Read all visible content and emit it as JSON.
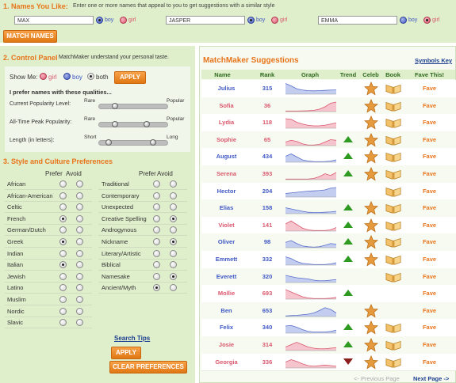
{
  "names_section": {
    "title": "1. Names You Like:",
    "instructions": "Enter one or more names that appeal to you to get suggestions with a similar style",
    "inputs": [
      {
        "value": "MAX",
        "gender": "boy"
      },
      {
        "value": "JASPER",
        "gender": "boy"
      },
      {
        "value": "EMMA",
        "gender": "girl"
      }
    ],
    "boy_label": "boy",
    "girl_label": "girl",
    "match_button": "MATCH NAMES"
  },
  "control_panel": {
    "title": "2. Control Panel",
    "subtitle": "MatchMaker understand your personal taste.",
    "show_me_label": "Show Me:",
    "options": [
      "girl",
      "boy",
      "both"
    ],
    "selected": "both",
    "apply_label": "APPLY",
    "qualities_title": "I prefer names with these qualities...",
    "sliders": [
      {
        "label": "Current Popularity Level:",
        "left": "Rare",
        "right": "Popular",
        "knobs": [
          0.2
        ]
      },
      {
        "label": "All-Time Peak Popularity:",
        "left": "Rare",
        "right": "Popular",
        "knobs": [
          0.2,
          0.7
        ]
      },
      {
        "label": "Length (in letters):",
        "left": "Short",
        "right": "Long",
        "knobs": [
          0.1,
          0.8
        ]
      }
    ]
  },
  "style_section": {
    "title": "3. Style and Culture Preferences",
    "prefer_label": "Prefer",
    "avoid_label": "Avoid",
    "left_styles": [
      {
        "name": "African",
        "pref": ""
      },
      {
        "name": "African-American",
        "pref": ""
      },
      {
        "name": "Celtic",
        "pref": ""
      },
      {
        "name": "French",
        "pref": "prefer"
      },
      {
        "name": "German/Dutch",
        "pref": ""
      },
      {
        "name": "Greek",
        "pref": "prefer"
      },
      {
        "name": "Indian",
        "pref": ""
      },
      {
        "name": "Italian",
        "pref": "prefer"
      },
      {
        "name": "Jewish",
        "pref": ""
      },
      {
        "name": "Latino",
        "pref": ""
      },
      {
        "name": "Muslim",
        "pref": ""
      },
      {
        "name": "Nordic",
        "pref": ""
      },
      {
        "name": "Slavic",
        "pref": ""
      }
    ],
    "right_styles": [
      {
        "name": "Traditional",
        "pref": ""
      },
      {
        "name": "Contemporary",
        "pref": ""
      },
      {
        "name": "Unexpected",
        "pref": ""
      },
      {
        "name": "Creative Spelling",
        "pref": "avoid"
      },
      {
        "name": "Androgynous",
        "pref": ""
      },
      {
        "name": "Nickname",
        "pref": "avoid"
      },
      {
        "name": "Literary/Artistic",
        "pref": ""
      },
      {
        "name": "Biblical",
        "pref": ""
      },
      {
        "name": "Namesake",
        "pref": "avoid"
      },
      {
        "name": "Ancient/Myth",
        "pref": "prefer"
      }
    ],
    "search_tips": "Search Tips",
    "apply_label": "APPLY",
    "clear_label": "CLEAR PREFERENCES"
  },
  "suggestions": {
    "title": "MatchMaker Suggestions",
    "symbols_key": "Symbols Key",
    "columns": [
      "Name",
      "Rank",
      "Graph",
      "Trend",
      "Celeb",
      "Book",
      "Fave This!"
    ],
    "rows": [
      {
        "name": "Julius",
        "gender": "boy",
        "rank": "315",
        "trend": "",
        "celeb": true,
        "book": true,
        "fave": "Fave",
        "spark": [
          0.9,
          0.7,
          0.45,
          0.35,
          0.3,
          0.28,
          0.3,
          0.32,
          0.35,
          0.36
        ]
      },
      {
        "name": "Sofia",
        "gender": "girl",
        "rank": "36",
        "trend": "",
        "celeb": true,
        "book": true,
        "fave": "Fave",
        "spark": [
          0.05,
          0.05,
          0.05,
          0.06,
          0.07,
          0.1,
          0.2,
          0.4,
          0.7,
          0.8
        ]
      },
      {
        "name": "Lydia",
        "gender": "girl",
        "rank": "118",
        "trend": "",
        "celeb": true,
        "book": true,
        "fave": "Fave",
        "spark": [
          0.8,
          0.75,
          0.5,
          0.35,
          0.25,
          0.2,
          0.2,
          0.25,
          0.35,
          0.45
        ]
      },
      {
        "name": "Sophie",
        "gender": "girl",
        "rank": "65",
        "trend": "up",
        "celeb": true,
        "book": true,
        "fave": "Fave",
        "spark": [
          0.3,
          0.45,
          0.35,
          0.15,
          0.05,
          0.05,
          0.1,
          0.3,
          0.5,
          0.45
        ]
      },
      {
        "name": "August",
        "gender": "boy",
        "rank": "434",
        "trend": "up",
        "celeb": true,
        "book": true,
        "fave": "Fave",
        "spark": [
          0.5,
          0.7,
          0.45,
          0.2,
          0.1,
          0.06,
          0.05,
          0.06,
          0.1,
          0.2
        ]
      },
      {
        "name": "Serena",
        "gender": "girl",
        "rank": "393",
        "trend": "up",
        "celeb": true,
        "book": true,
        "fave": "Fave",
        "spark": [
          0.05,
          0.05,
          0.05,
          0.05,
          0.05,
          0.1,
          0.25,
          0.5,
          0.35,
          0.6
        ]
      },
      {
        "name": "Hector",
        "gender": "boy",
        "rank": "204",
        "trend": "",
        "celeb": false,
        "book": true,
        "fave": "Fave",
        "spark": [
          0.3,
          0.35,
          0.4,
          0.45,
          0.5,
          0.52,
          0.55,
          0.6,
          0.75,
          0.8
        ]
      },
      {
        "name": "Elias",
        "gender": "boy",
        "rank": "158",
        "trend": "up",
        "celeb": true,
        "book": true,
        "fave": "Fave",
        "spark": [
          0.5,
          0.4,
          0.3,
          0.2,
          0.12,
          0.1,
          0.1,
          0.12,
          0.15,
          0.2
        ]
      },
      {
        "name": "Violet",
        "gender": "girl",
        "rank": "141",
        "trend": "up",
        "celeb": true,
        "book": true,
        "fave": "Fave",
        "spark": [
          0.6,
          0.85,
          0.55,
          0.25,
          0.1,
          0.05,
          0.05,
          0.05,
          0.1,
          0.3
        ]
      },
      {
        "name": "Oliver",
        "gender": "boy",
        "rank": "98",
        "trend": "up",
        "celeb": true,
        "book": true,
        "fave": "Fave",
        "spark": [
          0.45,
          0.6,
          0.35,
          0.15,
          0.08,
          0.05,
          0.08,
          0.2,
          0.35,
          0.3
        ]
      },
      {
        "name": "Emmett",
        "gender": "boy",
        "rank": "332",
        "trend": "up",
        "celeb": true,
        "book": true,
        "fave": "Fave",
        "spark": [
          0.7,
          0.55,
          0.3,
          0.15,
          0.1,
          0.05,
          0.05,
          0.05,
          0.1,
          0.2
        ]
      },
      {
        "name": "Everett",
        "gender": "boy",
        "rank": "320",
        "trend": "",
        "celeb": false,
        "book": true,
        "fave": "Fave",
        "spark": [
          0.6,
          0.5,
          0.4,
          0.35,
          0.3,
          0.2,
          0.15,
          0.15,
          0.2,
          0.25
        ]
      },
      {
        "name": "Mollie",
        "gender": "girl",
        "rank": "693",
        "trend": "up",
        "celeb": false,
        "book": false,
        "fave": "Fave",
        "spark": [
          0.8,
          0.6,
          0.4,
          0.2,
          0.1,
          0.05,
          0.05,
          0.05,
          0.08,
          0.15
        ]
      },
      {
        "name": "Ben",
        "gender": "boy",
        "rank": "653",
        "trend": "",
        "celeb": true,
        "book": false,
        "fave": "Fave",
        "spark": [
          0.05,
          0.08,
          0.1,
          0.15,
          0.2,
          0.3,
          0.5,
          0.75,
          0.6,
          0.3
        ]
      },
      {
        "name": "Felix",
        "gender": "boy",
        "rank": "340",
        "trend": "up",
        "celeb": true,
        "book": true,
        "fave": "Fave",
        "spark": [
          0.6,
          0.65,
          0.5,
          0.3,
          0.15,
          0.1,
          0.1,
          0.1,
          0.15,
          0.25
        ]
      },
      {
        "name": "Josie",
        "gender": "girl",
        "rank": "314",
        "trend": "up",
        "celeb": true,
        "book": true,
        "fave": "Fave",
        "spark": [
          0.3,
          0.5,
          0.7,
          0.5,
          0.3,
          0.2,
          0.15,
          0.15,
          0.2,
          0.25
        ]
      },
      {
        "name": "Georgia",
        "gender": "girl",
        "rank": "336",
        "trend": "down",
        "celeb": true,
        "book": true,
        "fave": "Fave",
        "spark": [
          0.5,
          0.7,
          0.55,
          0.35,
          0.2,
          0.15,
          0.2,
          0.25,
          0.2,
          0.15
        ]
      }
    ],
    "prev_page": "<- Previous Page",
    "next_page": "Next Page ->"
  },
  "colors": {
    "accent_orange": "#e8741a",
    "boy_blue": "#3f58c4",
    "girl_pink": "#d9576d",
    "panel_green": "#dfeecb",
    "trend_up": "#2e9a22",
    "trend_down": "#8b1d1d"
  }
}
